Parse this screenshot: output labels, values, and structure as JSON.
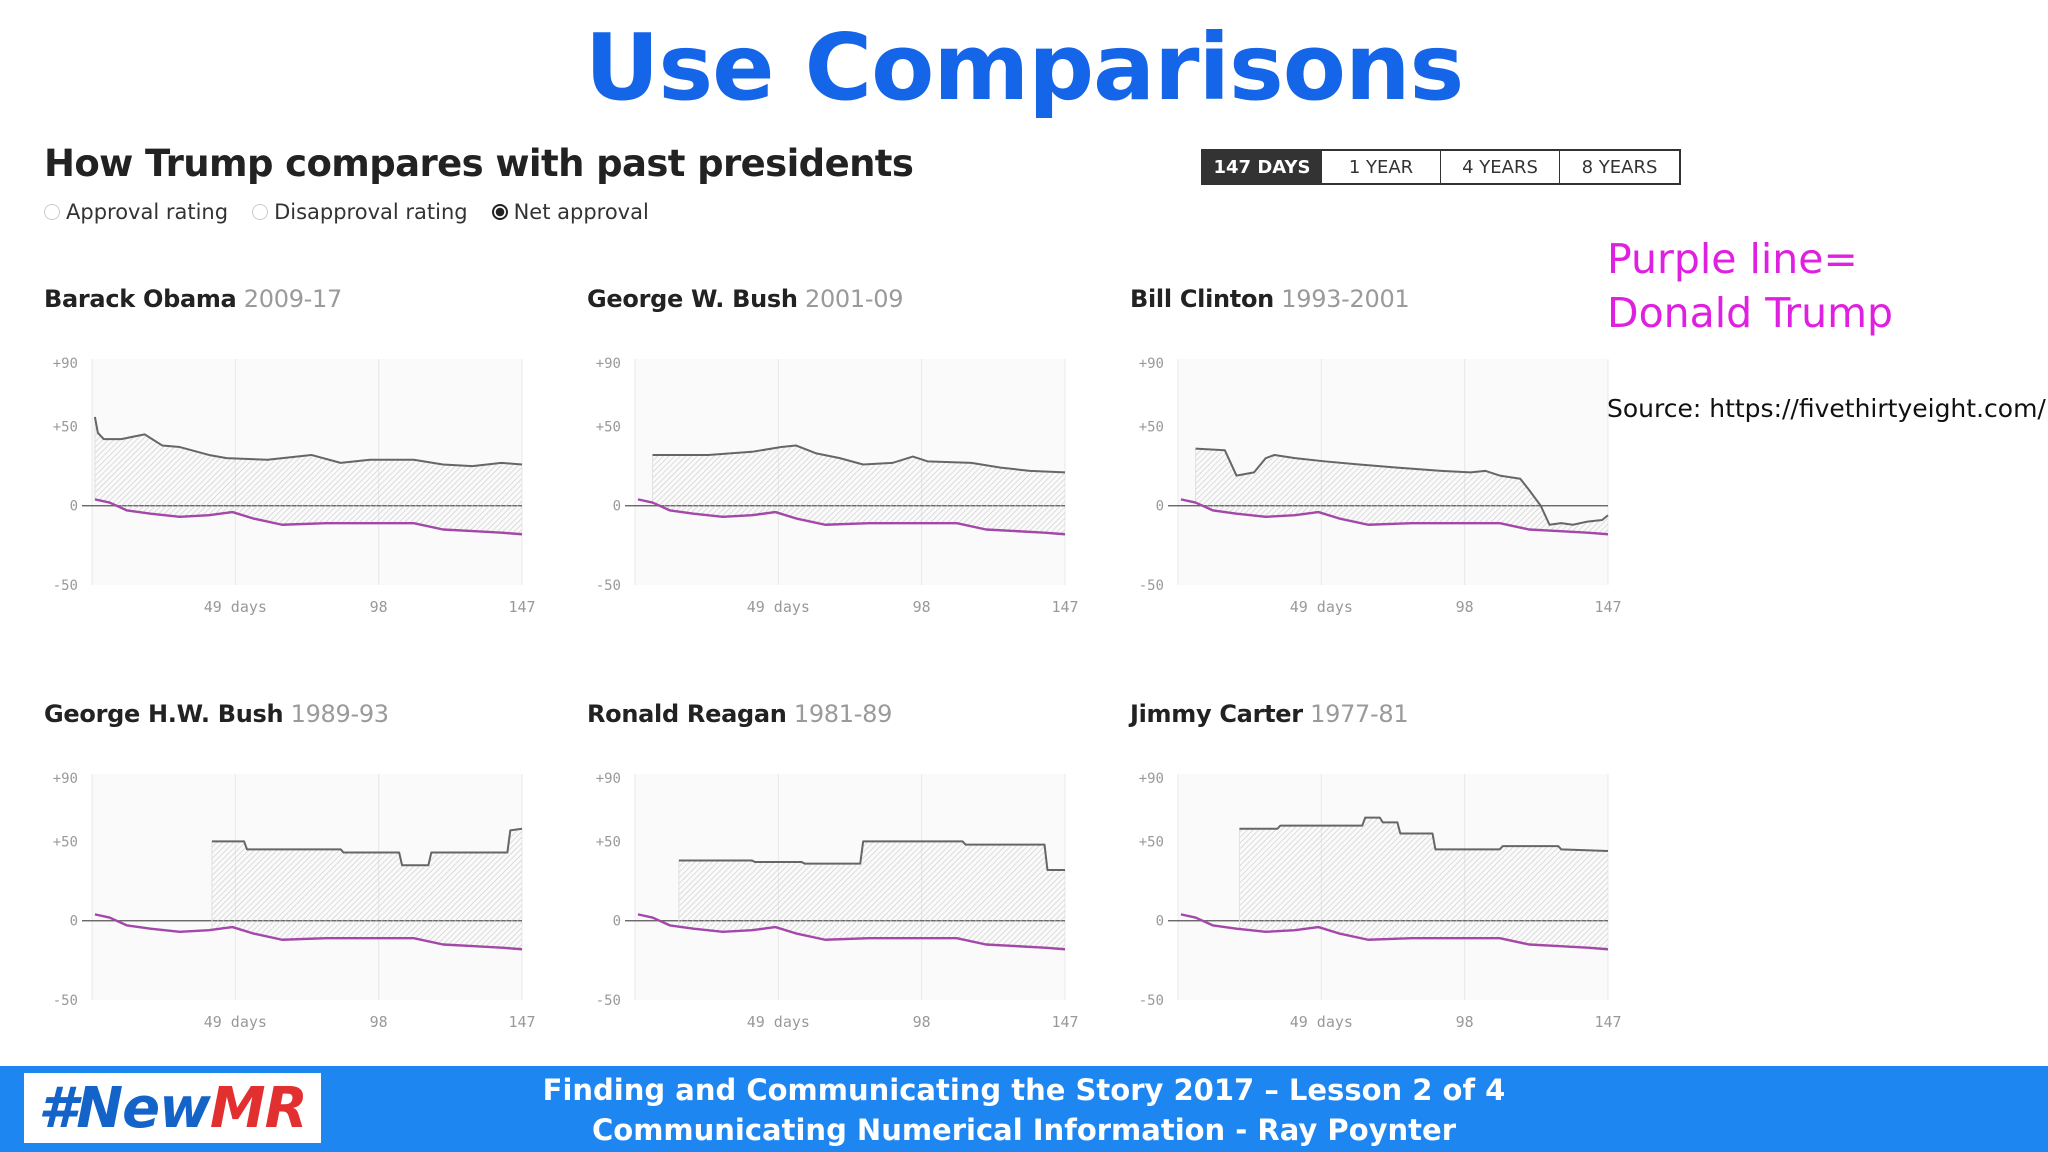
{
  "slide": {
    "title": "Use Comparisons",
    "note_line1": "Purple line=",
    "note_line2": "Donald Trump",
    "source": "Source: https://fivethirtyeight.com/"
  },
  "chart_header": {
    "title": "How Trump compares with past presidents",
    "radio_options": [
      {
        "label": "Approval rating",
        "selected": false
      },
      {
        "label": "Disapproval rating",
        "selected": false
      },
      {
        "label": "Net approval",
        "selected": true
      }
    ],
    "ranges": [
      {
        "label": "147 DAYS",
        "active": true
      },
      {
        "label": "1 YEAR",
        "active": false
      },
      {
        "label": "4 YEARS",
        "active": false
      },
      {
        "label": "8 YEARS",
        "active": false
      }
    ]
  },
  "colors": {
    "title_blue": "#1565e8",
    "trump_line": "#a347a8",
    "comparison_line": "#666666",
    "note_magenta": "#e020e0",
    "footer_blue": "#1d86f0"
  },
  "footer": {
    "logo_hash": "#New",
    "logo_mr": "MR",
    "line1": "Finding and Communicating the Story 2017 – Lesson 2 of 4",
    "line2": "Communicating Numerical Information - Ray Poynter"
  },
  "chart_data": [
    {
      "type": "line",
      "name": "Barack Obama",
      "years": "2009-17",
      "ylim": [
        -50,
        90
      ],
      "xlim": [
        0,
        147
      ],
      "yticks": [
        "+90",
        "+50",
        "0",
        "-50"
      ],
      "xticks": [
        "49 days",
        "98",
        "147"
      ],
      "president": [
        [
          1,
          56
        ],
        [
          2,
          46
        ],
        [
          4,
          42
        ],
        [
          10,
          42
        ],
        [
          18,
          45
        ],
        [
          24,
          38
        ],
        [
          30,
          37
        ],
        [
          40,
          32
        ],
        [
          46,
          30
        ],
        [
          60,
          29
        ],
        [
          75,
          32
        ],
        [
          85,
          27
        ],
        [
          95,
          29
        ],
        [
          110,
          29
        ],
        [
          120,
          26
        ],
        [
          130,
          25
        ],
        [
          140,
          27
        ],
        [
          147,
          26
        ]
      ],
      "trump": [
        [
          1,
          4
        ],
        [
          6,
          2
        ],
        [
          12,
          -3
        ],
        [
          20,
          -5
        ],
        [
          30,
          -7
        ],
        [
          40,
          -6
        ],
        [
          48,
          -4
        ],
        [
          55,
          -8
        ],
        [
          65,
          -12
        ],
        [
          80,
          -11
        ],
        [
          95,
          -11
        ],
        [
          110,
          -11
        ],
        [
          120,
          -15
        ],
        [
          130,
          -16
        ],
        [
          140,
          -17
        ],
        [
          147,
          -18
        ]
      ]
    },
    {
      "type": "line",
      "name": "George W. Bush",
      "years": "2001-09",
      "ylim": [
        -50,
        90
      ],
      "xlim": [
        0,
        147
      ],
      "yticks": [
        "+90",
        "+50",
        "0",
        "-50"
      ],
      "xticks": [
        "49 days",
        "98",
        "147"
      ],
      "president": [
        [
          6,
          32
        ],
        [
          25,
          32
        ],
        [
          40,
          34
        ],
        [
          50,
          37
        ],
        [
          55,
          38
        ],
        [
          62,
          33
        ],
        [
          70,
          30
        ],
        [
          78,
          26
        ],
        [
          88,
          27
        ],
        [
          95,
          31
        ],
        [
          100,
          28
        ],
        [
          115,
          27
        ],
        [
          125,
          24
        ],
        [
          135,
          22
        ],
        [
          147,
          21
        ]
      ],
      "trump": [
        [
          1,
          4
        ],
        [
          6,
          2
        ],
        [
          12,
          -3
        ],
        [
          20,
          -5
        ],
        [
          30,
          -7
        ],
        [
          40,
          -6
        ],
        [
          48,
          -4
        ],
        [
          55,
          -8
        ],
        [
          65,
          -12
        ],
        [
          80,
          -11
        ],
        [
          95,
          -11
        ],
        [
          110,
          -11
        ],
        [
          120,
          -15
        ],
        [
          130,
          -16
        ],
        [
          140,
          -17
        ],
        [
          147,
          -18
        ]
      ]
    },
    {
      "type": "line",
      "name": "Bill Clinton",
      "years": "1993-2001",
      "ylim": [
        -50,
        90
      ],
      "xlim": [
        0,
        147
      ],
      "yticks": [
        "+90",
        "+50",
        "0",
        "-50"
      ],
      "xticks": [
        "49 days",
        "98",
        "147"
      ],
      "president": [
        [
          6,
          36
        ],
        [
          16,
          35
        ],
        [
          20,
          19
        ],
        [
          26,
          21
        ],
        [
          30,
          30
        ],
        [
          33,
          32
        ],
        [
          40,
          30
        ],
        [
          50,
          28
        ],
        [
          62,
          26
        ],
        [
          75,
          24
        ],
        [
          90,
          22
        ],
        [
          100,
          21
        ],
        [
          105,
          22
        ],
        [
          110,
          19
        ],
        [
          117,
          17
        ],
        [
          120,
          10
        ],
        [
          124,
          0
        ],
        [
          127,
          -12
        ],
        [
          131,
          -11
        ],
        [
          135,
          -12
        ],
        [
          140,
          -10
        ],
        [
          145,
          -9
        ],
        [
          147,
          -6
        ]
      ],
      "trump": [
        [
          1,
          4
        ],
        [
          6,
          2
        ],
        [
          12,
          -3
        ],
        [
          20,
          -5
        ],
        [
          30,
          -7
        ],
        [
          40,
          -6
        ],
        [
          48,
          -4
        ],
        [
          55,
          -8
        ],
        [
          65,
          -12
        ],
        [
          80,
          -11
        ],
        [
          95,
          -11
        ],
        [
          110,
          -11
        ],
        [
          120,
          -15
        ],
        [
          130,
          -16
        ],
        [
          140,
          -17
        ],
        [
          147,
          -18
        ]
      ]
    },
    {
      "type": "line",
      "name": "George H.W. Bush",
      "years": "1989-93",
      "ylim": [
        -50,
        90
      ],
      "xlim": [
        0,
        147
      ],
      "yticks": [
        "+90",
        "+50",
        "0",
        "-50"
      ],
      "xticks": [
        "49 days",
        "98",
        "147"
      ],
      "president": [
        [
          41,
          50
        ],
        [
          52,
          50
        ],
        [
          53,
          45
        ],
        [
          85,
          45
        ],
        [
          86,
          43
        ],
        [
          105,
          43
        ],
        [
          106,
          35
        ],
        [
          115,
          35
        ],
        [
          116,
          43
        ],
        [
          142,
          43
        ],
        [
          143,
          57
        ],
        [
          147,
          58
        ]
      ],
      "trump": [
        [
          1,
          4
        ],
        [
          6,
          2
        ],
        [
          12,
          -3
        ],
        [
          20,
          -5
        ],
        [
          30,
          -7
        ],
        [
          40,
          -6
        ],
        [
          48,
          -4
        ],
        [
          55,
          -8
        ],
        [
          65,
          -12
        ],
        [
          80,
          -11
        ],
        [
          95,
          -11
        ],
        [
          110,
          -11
        ],
        [
          120,
          -15
        ],
        [
          130,
          -16
        ],
        [
          140,
          -17
        ],
        [
          147,
          -18
        ]
      ]
    },
    {
      "type": "line",
      "name": "Ronald Reagan",
      "years": "1981-89",
      "ylim": [
        -50,
        90
      ],
      "xlim": [
        0,
        147
      ],
      "yticks": [
        "+90",
        "+50",
        "0",
        "-50"
      ],
      "xticks": [
        "49 days",
        "98",
        "147"
      ],
      "president": [
        [
          15,
          38
        ],
        [
          40,
          38
        ],
        [
          41,
          37
        ],
        [
          57,
          37
        ],
        [
          58,
          36
        ],
        [
          77,
          36
        ],
        [
          78,
          50
        ],
        [
          112,
          50
        ],
        [
          113,
          48
        ],
        [
          140,
          48
        ],
        [
          141,
          32
        ],
        [
          147,
          32
        ]
      ],
      "trump": [
        [
          1,
          4
        ],
        [
          6,
          2
        ],
        [
          12,
          -3
        ],
        [
          20,
          -5
        ],
        [
          30,
          -7
        ],
        [
          40,
          -6
        ],
        [
          48,
          -4
        ],
        [
          55,
          -8
        ],
        [
          65,
          -12
        ],
        [
          80,
          -11
        ],
        [
          95,
          -11
        ],
        [
          110,
          -11
        ],
        [
          120,
          -15
        ],
        [
          130,
          -16
        ],
        [
          140,
          -17
        ],
        [
          147,
          -18
        ]
      ]
    },
    {
      "type": "line",
      "name": "Jimmy Carter",
      "years": "1977-81",
      "ylim": [
        -50,
        90
      ],
      "xlim": [
        0,
        147
      ],
      "yticks": [
        "+90",
        "+50",
        "0",
        "-50"
      ],
      "xticks": [
        "49 days",
        "98",
        "147"
      ],
      "president": [
        [
          21,
          58
        ],
        [
          34,
          58
        ],
        [
          35,
          60
        ],
        [
          63,
          60
        ],
        [
          64,
          65
        ],
        [
          69,
          65
        ],
        [
          70,
          62
        ],
        [
          75,
          62
        ],
        [
          76,
          55
        ],
        [
          87,
          55
        ],
        [
          88,
          45
        ],
        [
          110,
          45
        ],
        [
          111,
          47
        ],
        [
          130,
          47
        ],
        [
          131,
          45
        ],
        [
          147,
          44
        ]
      ],
      "trump": [
        [
          1,
          4
        ],
        [
          6,
          2
        ],
        [
          12,
          -3
        ],
        [
          20,
          -5
        ],
        [
          30,
          -7
        ],
        [
          40,
          -6
        ],
        [
          48,
          -4
        ],
        [
          55,
          -8
        ],
        [
          65,
          -12
        ],
        [
          80,
          -11
        ],
        [
          95,
          -11
        ],
        [
          110,
          -11
        ],
        [
          120,
          -15
        ],
        [
          130,
          -16
        ],
        [
          140,
          -17
        ],
        [
          147,
          -18
        ]
      ]
    }
  ]
}
